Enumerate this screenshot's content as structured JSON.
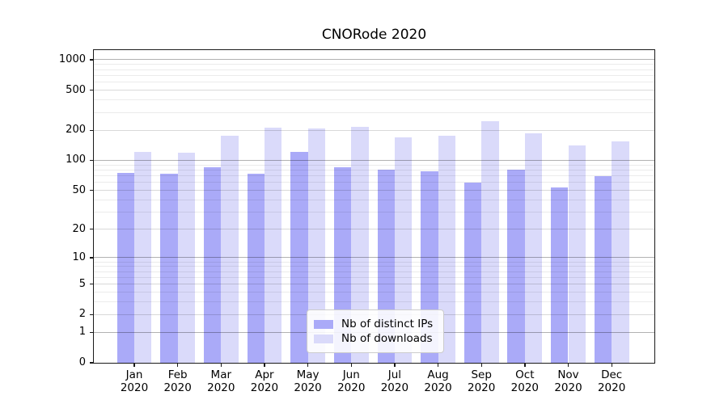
{
  "chart_data": {
    "type": "bar",
    "title": "CNORode 2020",
    "categories": [
      "Jan",
      "Feb",
      "Mar",
      "Apr",
      "May",
      "Jun",
      "Jul",
      "Aug",
      "Sep",
      "Oct",
      "Nov",
      "Dec"
    ],
    "year_label": "2020",
    "series": [
      {
        "name": "Nb of distinct IPs",
        "color": "#aaaaf8",
        "values": [
          75,
          73,
          85,
          73,
          122,
          86,
          80,
          78,
          60,
          81,
          53,
          69
        ]
      },
      {
        "name": "Nb of downloads",
        "color": "#dadafa",
        "values": [
          122,
          120,
          176,
          210,
          208,
          217,
          170,
          175,
          246,
          186,
          140,
          155
        ]
      }
    ],
    "xlabel": "",
    "ylabel": "",
    "yscale": "log1p",
    "ylim": [
      0,
      1300
    ],
    "y_ticks": [
      0,
      1,
      2,
      5,
      10,
      20,
      50,
      100,
      200,
      500,
      1000
    ],
    "y_mid_gridlines": [
      2,
      5,
      20,
      50,
      200,
      500
    ],
    "y_major_gridlines": [
      1,
      10,
      100,
      1000
    ],
    "y_minor_gridlines": [
      3,
      4,
      6,
      7,
      8,
      9,
      30,
      40,
      60,
      70,
      80,
      90,
      300,
      400,
      600,
      700,
      800,
      900
    ],
    "grid": "horizontal",
    "legend_position": "lower center-left inside plot"
  },
  "style": {
    "background": "#ffffff",
    "bar_color_distinct_ips": "#aaaaf8",
    "bar_color_downloads": "#dadafa",
    "gridline_major_color": "#b3b3b3",
    "gridline_minor_color": "#ebebeb",
    "spine_color": "#1a1a1a"
  }
}
